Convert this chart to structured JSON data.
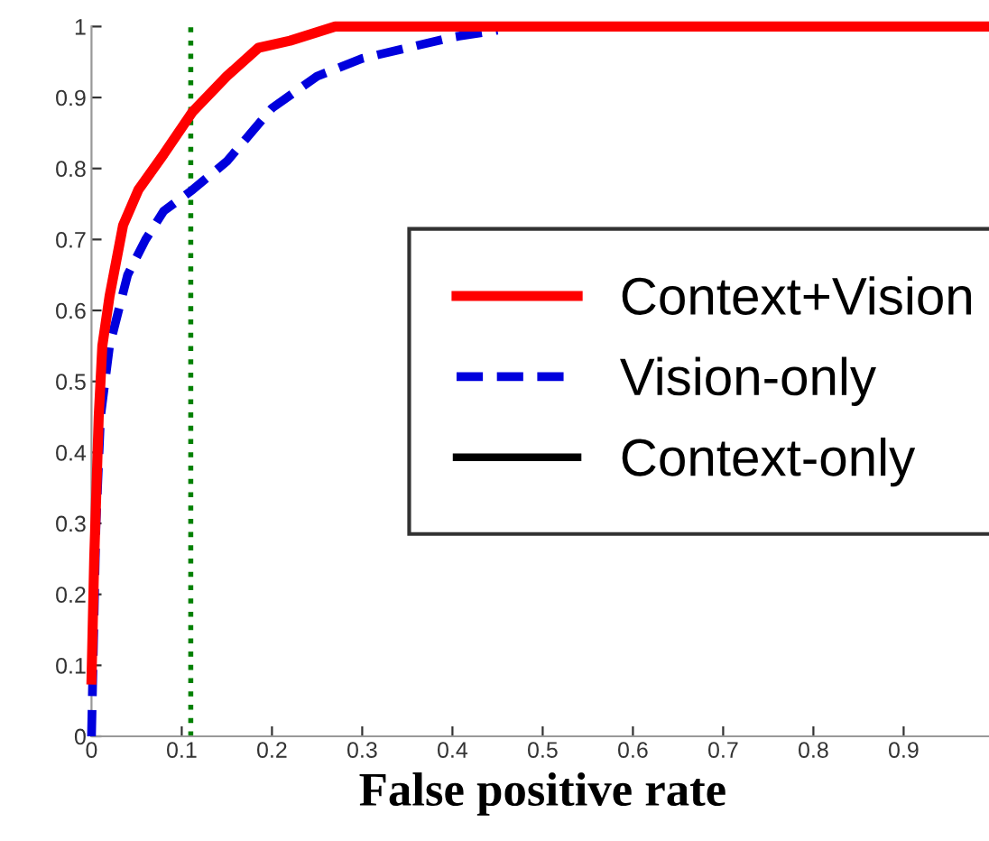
{
  "chart_data": {
    "type": "line",
    "xlabel": "False positive rate",
    "xlim": [
      0,
      1
    ],
    "ylim": [
      0,
      1
    ],
    "xticks": [
      0,
      0.1,
      0.2,
      0.3,
      0.4,
      0.5,
      0.6,
      0.7,
      0.8,
      0.9
    ],
    "yticks": [
      0,
      0.1,
      0.2,
      0.3,
      0.4,
      0.5,
      0.6,
      0.7,
      0.8,
      0.9,
      1
    ],
    "grid": false,
    "legend": "right",
    "series": [
      {
        "name": "Context+Vision",
        "color": "#ff0000",
        "line_style": "solid",
        "x": [
          0,
          0.003,
          0.008,
          0.012,
          0.02,
          0.035,
          0.052,
          0.08,
          0.112,
          0.15,
          0.185,
          0.22,
          0.27,
          1.0
        ],
        "values": [
          0.08,
          0.25,
          0.45,
          0.55,
          0.62,
          0.72,
          0.77,
          0.82,
          0.88,
          0.93,
          0.97,
          0.98,
          1.0,
          1.0
        ]
      },
      {
        "name": "Vision-only",
        "color": "#0000dd",
        "line_style": "dashed",
        "x": [
          0,
          0.005,
          0.01,
          0.02,
          0.04,
          0.06,
          0.08,
          0.112,
          0.15,
          0.2,
          0.25,
          0.3,
          0.35,
          0.4,
          0.45
        ],
        "values": [
          0,
          0.3,
          0.45,
          0.55,
          0.65,
          0.7,
          0.74,
          0.77,
          0.81,
          0.885,
          0.93,
          0.955,
          0.97,
          0.985,
          0.995
        ]
      },
      {
        "name": "Context-only",
        "color": "#000000",
        "line_style": "solid"
      }
    ],
    "ref_lines": [
      {
        "axis": "x",
        "value": 0.11,
        "color": "#008000",
        "line_style": "dotted"
      }
    ]
  }
}
